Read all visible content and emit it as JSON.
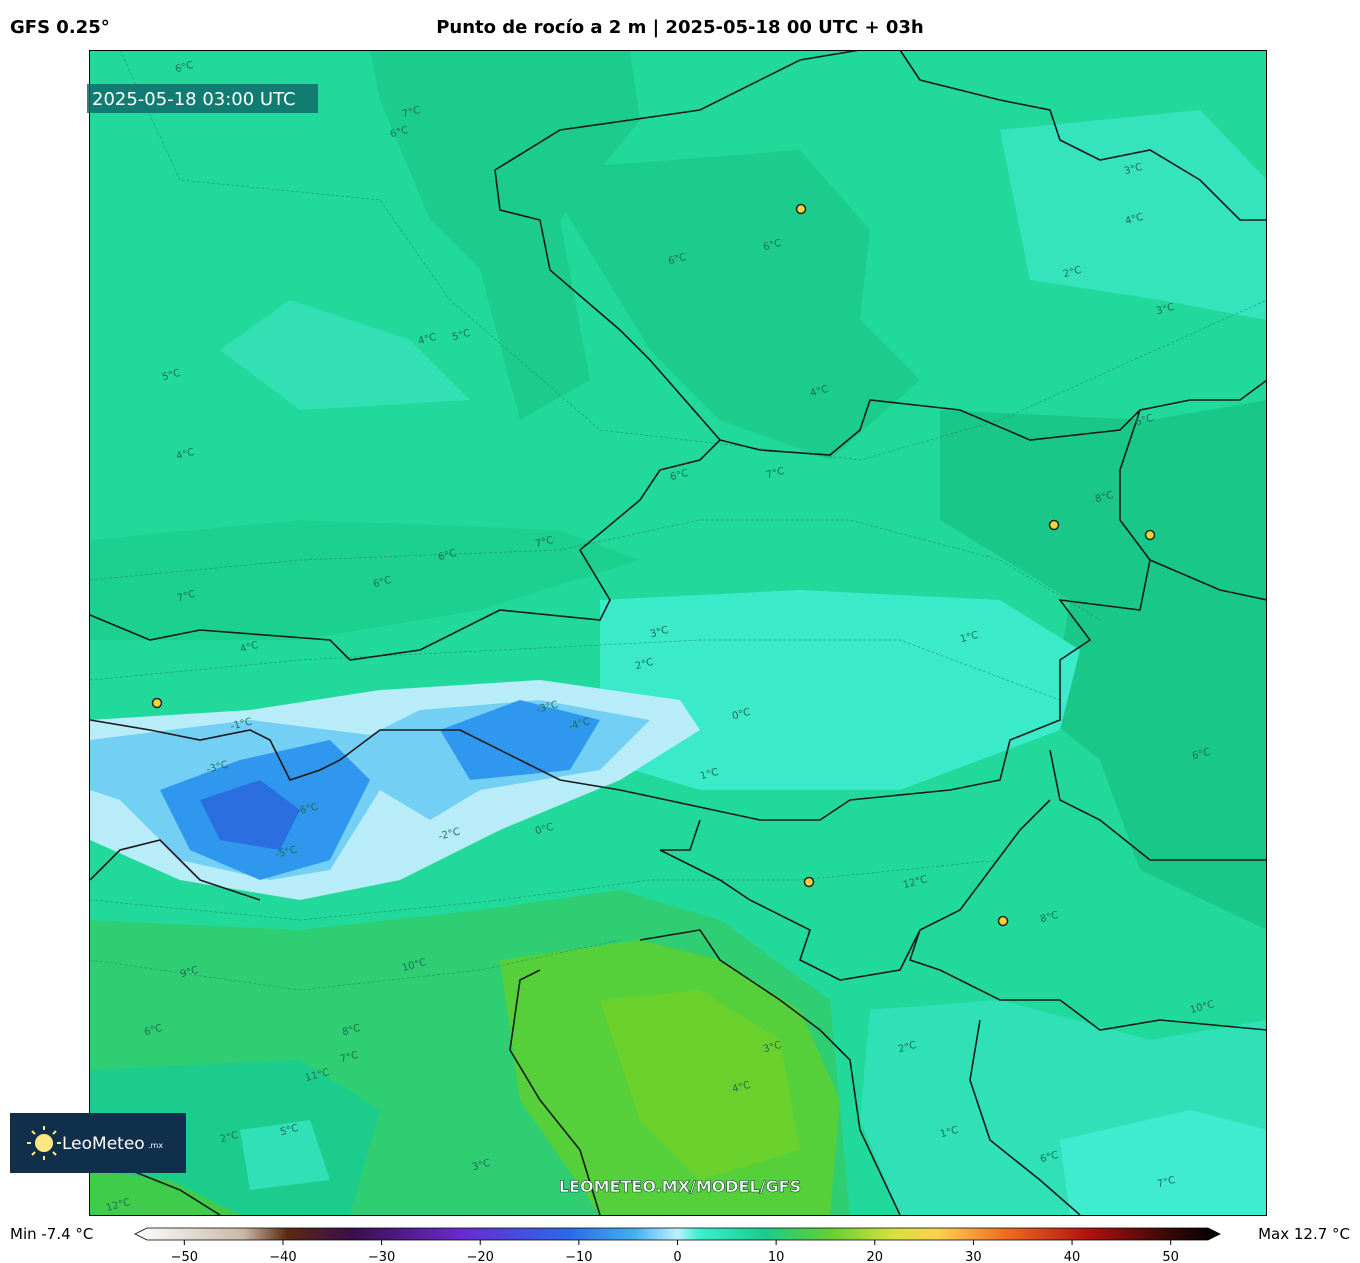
{
  "header": {
    "model": "GFS 0.25°",
    "title": "Punto de rocío a 2 m | 2025-05-18 00 UTC + 03h"
  },
  "map": {
    "timestamp": "2025-05-18 03:00 UTC",
    "watermark": "LEOMETEO.MX/MODEL/GFS",
    "contour_labels": [
      "6°C",
      "7°C",
      "6°C",
      "4°C",
      "5°C",
      "5°C",
      "4°C",
      "6°C",
      "6°C",
      "3°C",
      "4°C",
      "2°C",
      "3°C",
      "4°C",
      "6°C",
      "6°C",
      "7°C",
      "7°C",
      "6°C",
      "4°C",
      "3°C",
      "2°C",
      "1°C",
      "0°C",
      "-1°C",
      "-3°C",
      "-4°C",
      "-3°C",
      "-5°C",
      "-6°C",
      "-2°C",
      "0°C",
      "1°C",
      "7°C",
      "8°C",
      "6°C",
      "8°C",
      "10°C",
      "10°C",
      "9°C",
      "8°C",
      "7°C",
      "6°C",
      "11°C",
      "12°C",
      "3°C",
      "4°C",
      "5°C",
      "2°C",
      "3°C",
      "2°C",
      "1°C",
      "6°C",
      "7°C",
      "6°C",
      "12°C"
    ]
  },
  "logo": {
    "name": "LeoMeteo",
    "suffix": ".mx"
  },
  "colorbar": {
    "min_label": "Min -7.4 °C",
    "max_label": "Max 12.7 °C",
    "lim": [
      -55,
      55
    ],
    "ticks": [
      {
        "value": -50,
        "label": "−50"
      },
      {
        "value": -40,
        "label": "−40"
      },
      {
        "value": -30,
        "label": "−30"
      },
      {
        "value": -20,
        "label": "−20"
      },
      {
        "value": -10,
        "label": "−10"
      },
      0,
      10,
      20,
      30,
      40,
      50
    ]
  }
}
